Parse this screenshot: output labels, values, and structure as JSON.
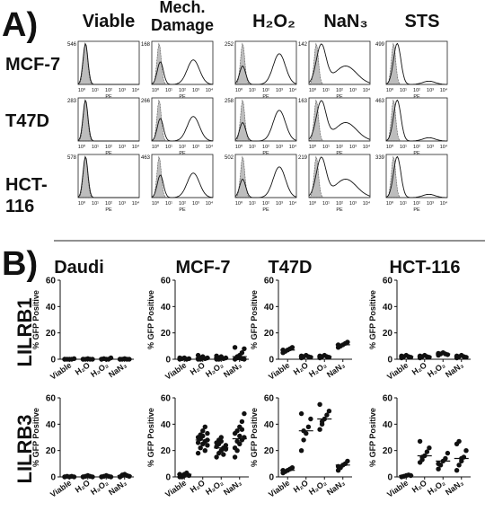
{
  "panel_a": {
    "label": "A)",
    "columns": [
      "Viable",
      "Mech.\nDamage",
      "H₂O₂",
      "NaN₃",
      "STS"
    ],
    "rows": [
      "MCF-7",
      "T47D",
      "HCT-\n116"
    ],
    "axis_label": "PE",
    "x_ticks": [
      "10⁰",
      "10¹",
      "10²",
      "10³",
      "10⁴"
    ],
    "counts": [
      [
        "546",
        "168",
        "252",
        "142",
        "499"
      ],
      [
        "283",
        "266",
        "258",
        "163",
        "463"
      ],
      [
        "578",
        "463",
        "502",
        "219",
        "339"
      ]
    ]
  },
  "panel_b": {
    "label": "B)",
    "columns": [
      "Daudi",
      "MCF-7",
      "T47D",
      "HCT-116"
    ],
    "rows": [
      "LILRB1",
      "LILRB3"
    ],
    "ylabel": "% GFP Positive",
    "y_ticks": [
      "0",
      "20",
      "40",
      "60"
    ],
    "x_categories": [
      "Viable",
      "H₂O",
      "H₂O₂",
      "NaN₃"
    ]
  },
  "chart_data": {
    "type": "scatter",
    "ylim": [
      0,
      60
    ],
    "categories": [
      "Viable",
      "H2O",
      "H2O2",
      "NaN3"
    ],
    "panels": [
      {
        "row": "LILRB1",
        "col": "Daudi",
        "means": [
          0,
          0,
          0.5,
          0
        ],
        "points": [
          [
            0,
            0,
            0,
            0,
            0.5,
            0
          ],
          [
            0,
            0,
            0.5,
            0,
            0,
            0
          ],
          [
            0,
            0.5,
            0,
            0,
            1,
            0
          ],
          [
            0,
            0,
            0.5,
            0,
            0,
            0
          ]
        ]
      },
      {
        "row": "LILRB1",
        "col": "MCF-7",
        "means": [
          0,
          1,
          1,
          2
        ],
        "points": [
          [
            0,
            0.5,
            1,
            0,
            0.5,
            1
          ],
          [
            0,
            1,
            2,
            0.5,
            1,
            3,
            0,
            1.5
          ],
          [
            0,
            1,
            2,
            0.5,
            1,
            2.5,
            0,
            1
          ],
          [
            0,
            1,
            3,
            5,
            8,
            9,
            2,
            1,
            0.5,
            0
          ]
        ]
      },
      {
        "row": "LILRB1",
        "col": "T47D",
        "means": [
          7,
          2,
          2,
          11
        ],
        "points": [
          [
            5,
            6,
            7,
            8,
            9,
            7
          ],
          [
            1,
            2,
            3,
            2,
            1.5,
            2.5
          ],
          [
            1,
            2,
            3,
            2,
            1.5,
            2.5
          ],
          [
            9,
            10,
            11,
            12,
            13,
            11
          ]
        ]
      },
      {
        "row": "LILRB1",
        "col": "HCT-116",
        "means": [
          2,
          2,
          4,
          2
        ],
        "points": [
          [
            1,
            2,
            3,
            2,
            1.5,
            2.5
          ],
          [
            1,
            2,
            3,
            2,
            1.5,
            2.5
          ],
          [
            3,
            4,
            5,
            4,
            3.5,
            4.5
          ],
          [
            1,
            2,
            3,
            2,
            1.5,
            2.5
          ]
        ]
      },
      {
        "row": "LILRB3",
        "col": "Daudi",
        "means": [
          0,
          0,
          0,
          1
        ],
        "points": [
          [
            0,
            0.5,
            0,
            0.5,
            0,
            0
          ],
          [
            0,
            0.5,
            1,
            0.5,
            0,
            0
          ],
          [
            0,
            0.5,
            1,
            0.5,
            0,
            0
          ],
          [
            0,
            1,
            2,
            1,
            0.5,
            0,
            1.5
          ]
        ]
      },
      {
        "row": "LILRB3",
        "col": "MCF-7",
        "means": [
          2,
          28,
          22,
          29
        ],
        "points": [
          [
            0,
            1,
            2,
            3,
            1,
            2,
            0,
            1
          ],
          [
            18,
            22,
            25,
            27,
            28,
            30,
            32,
            35,
            38,
            24,
            26,
            29,
            31,
            20,
            33
          ],
          [
            15,
            18,
            20,
            22,
            24,
            26,
            28,
            30,
            17,
            21,
            23,
            25,
            27
          ],
          [
            15,
            20,
            25,
            28,
            30,
            33,
            35,
            38,
            42,
            48,
            22,
            27,
            31,
            36
          ]
        ]
      },
      {
        "row": "LILRB3",
        "col": "T47D",
        "means": [
          5,
          35,
          44,
          9
        ],
        "points": [
          [
            3,
            4,
            5,
            6,
            7,
            5
          ],
          [
            20,
            28,
            33,
            38,
            44,
            48,
            35
          ],
          [
            36,
            40,
            44,
            47,
            50,
            55,
            42
          ],
          [
            5,
            7,
            9,
            10,
            12,
            8
          ]
        ]
      },
      {
        "row": "LILRB3",
        "col": "HCT-116",
        "means": [
          1,
          16,
          12,
          14
        ],
        "points": [
          [
            0,
            0.5,
            1,
            1.5,
            1
          ],
          [
            11,
            13,
            16,
            19,
            22,
            27,
            15
          ],
          [
            6,
            9,
            12,
            14,
            18,
            10
          ],
          [
            5,
            9,
            12,
            15,
            20,
            25,
            27,
            14
          ]
        ]
      }
    ]
  }
}
